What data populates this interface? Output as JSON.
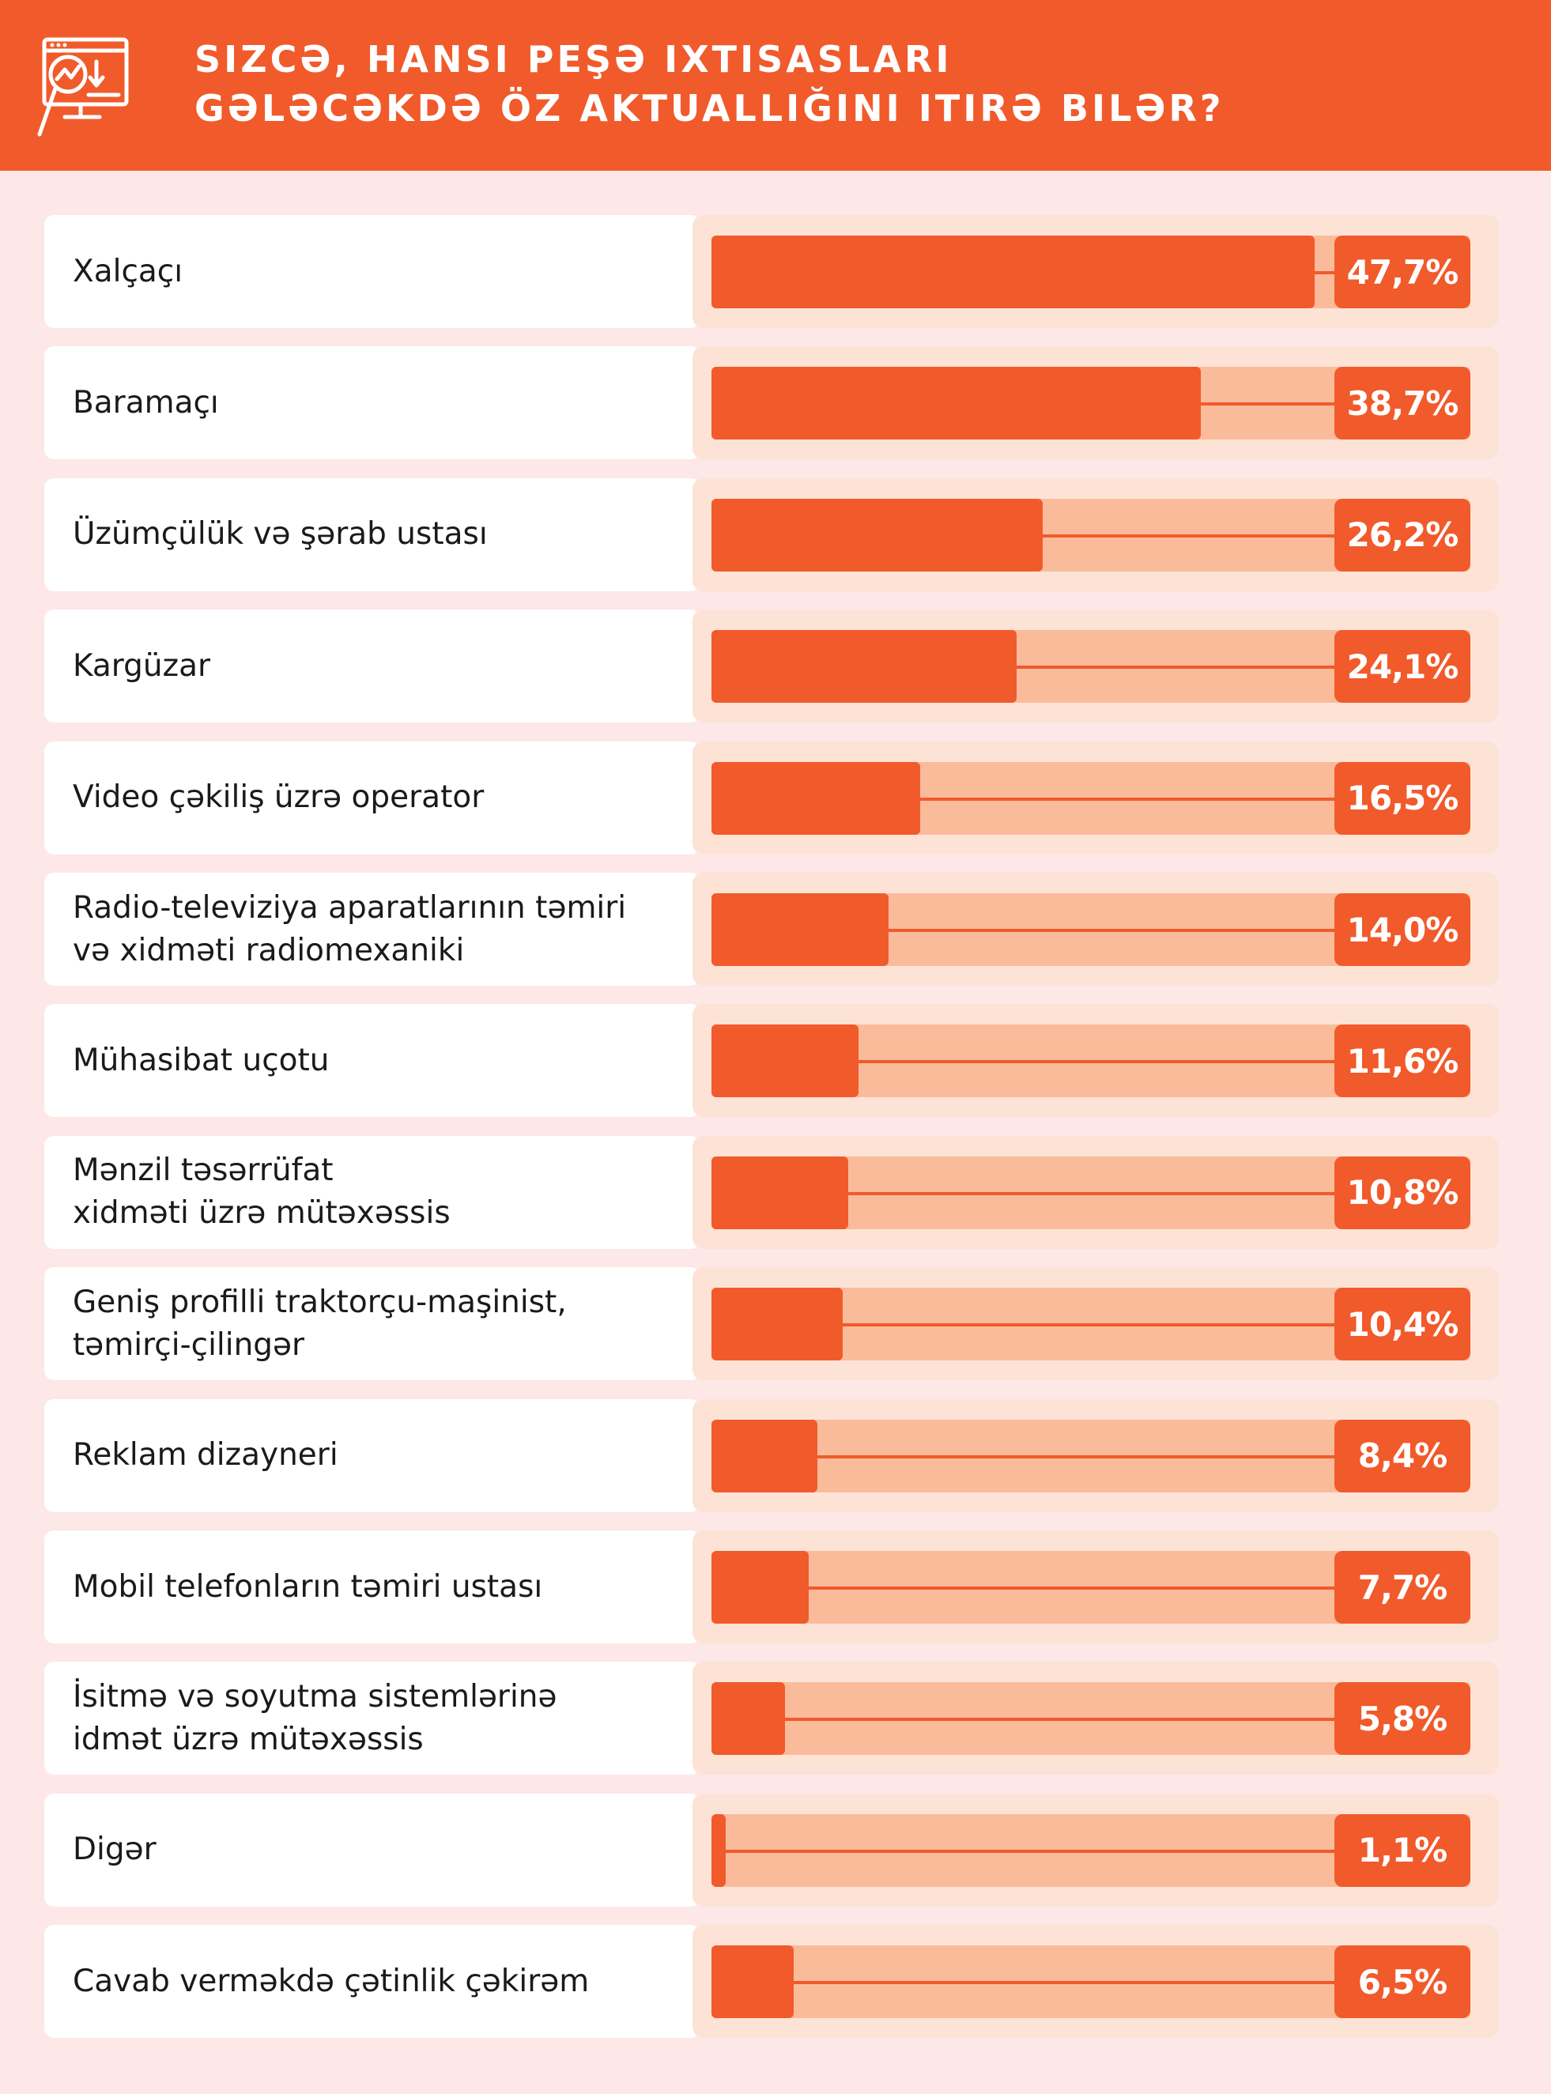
{
  "header": {
    "title_lines": [
      "Sizcə, hansı peşə ixtisasları",
      "gələcəkdə öz aktuallığını itirə bilər?"
    ],
    "icon": "chart-analytics-icon"
  },
  "colors": {
    "accent": "#f15a2b",
    "track": "#fabb9b",
    "card": "#fce3d6",
    "background": "#fde7e7"
  },
  "chart_data": {
    "type": "bar",
    "orientation": "horizontal",
    "categories": [
      "Xalçaçı",
      "Baramaçı",
      "Üzümçülük və şərab ustası",
      "Kargüzar",
      "Video çəkiliş üzrə operator",
      "Radio-televiziya aparatlarının təmiri\nvə xidməti radiomexaniki",
      "Mühasibat uçotu",
      "Mənzil təsərrüfat\nxidməti üzrə mütəxəssis",
      "Geniş profilli traktorçu-maşinist,\ntəmirçi-çilingər",
      "Reklam dizayneri",
      "Mobil telefonların təmiri ustası",
      "İsitmə və soyutma sistemlərinə\nidmət üzrə mütəxəssis",
      "Digər",
      "Cavab verməkdə çətinlik çəkirəm"
    ],
    "values": [
      47.7,
      38.7,
      26.2,
      24.1,
      16.5,
      14.0,
      11.6,
      10.8,
      10.4,
      8.4,
      7.7,
      5.8,
      1.1,
      6.5
    ],
    "value_labels": [
      "47,7%",
      "38,7%",
      "26,2%",
      "24,1%",
      "16,5%",
      "14,0%",
      "11,6%",
      "10,8%",
      "10,4%",
      "8,4%",
      "7,7%",
      "5,8%",
      "1,1%",
      "6,5%"
    ],
    "unit": "%",
    "xlim": [
      0,
      60
    ]
  }
}
